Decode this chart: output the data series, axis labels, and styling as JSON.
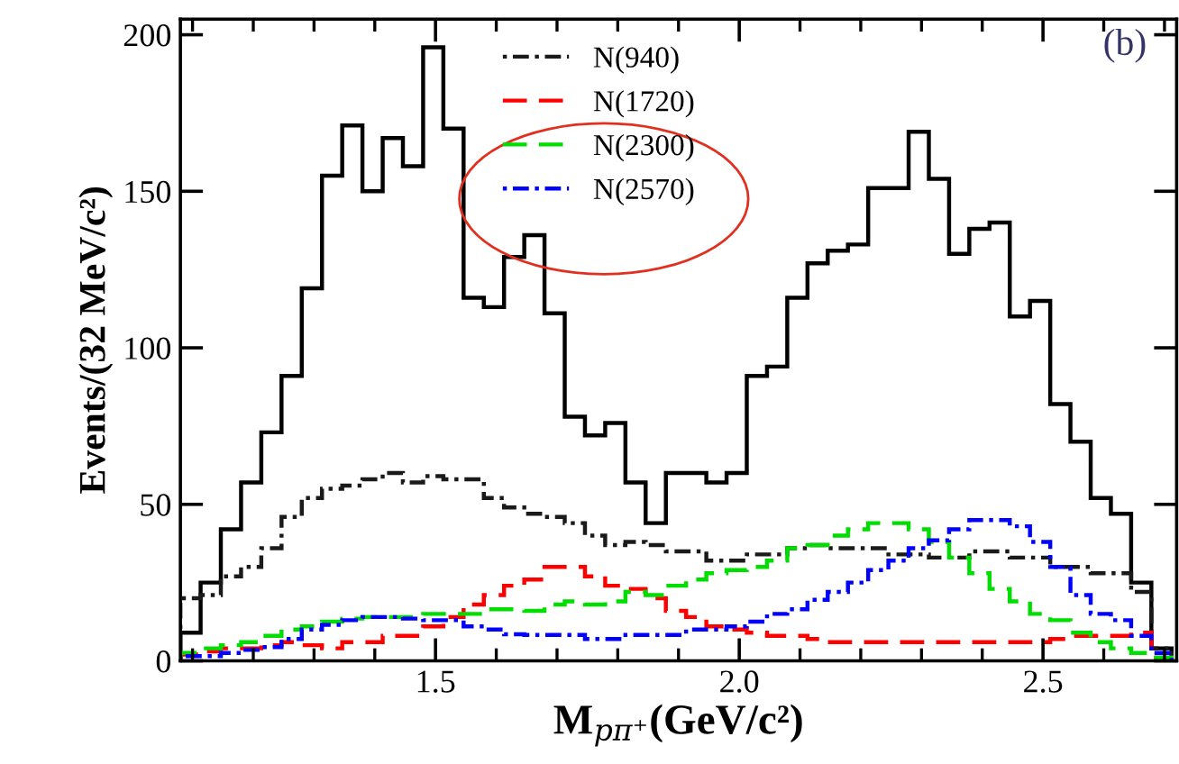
{
  "chart_data": {
    "type": "histogram",
    "xlabel": "M$_{pπ⁺}$(GeV/c²)",
    "ylabel": "Events/(32 MeV/c²)",
    "annotations": [
      "(b)"
    ],
    "bins": [
      1.08,
      1.1133,
      1.1466,
      1.1799,
      1.2132,
      1.2465,
      1.2798,
      1.3131,
      1.3464,
      1.3797,
      1.413,
      1.4463,
      1.4796,
      1.5129,
      1.5462,
      1.5795,
      1.6128,
      1.6461,
      1.6794,
      1.7127,
      1.746,
      1.7793,
      1.8126,
      1.8459,
      1.8792,
      1.9125,
      1.9458,
      1.9791,
      2.0124,
      2.0457,
      2.079,
      2.1123,
      2.1456,
      2.1789,
      2.2122,
      2.2455,
      2.2788,
      2.3121,
      2.3454,
      2.3787,
      2.412,
      2.4453,
      2.4786,
      2.5119,
      2.5452,
      2.5785,
      2.6118,
      2.6451,
      2.6784,
      2.7117
    ],
    "series": [
      {
        "color": "#000000",
        "line_style": "solid",
        "values": [
          9,
          25,
          42,
          57,
          73,
          91,
          119,
          155,
          171,
          150,
          167,
          158,
          196,
          170,
          116,
          113,
          129,
          136,
          111,
          78,
          72,
          76,
          57,
          44,
          60,
          60,
          57,
          60,
          91,
          94,
          116,
          127,
          131,
          133,
          151,
          151,
          169,
          154,
          130,
          138,
          140,
          110,
          115,
          82,
          70,
          52,
          47,
          25,
          4
        ]
      },
      {
        "name": "N(940)",
        "color": "#1a1a1a",
        "line_style": "dotted",
        "values": [
          20,
          21,
          27,
          30,
          36,
          46,
          52,
          55,
          56,
          58,
          60,
          57,
          59,
          58,
          58,
          52,
          49,
          47,
          46,
          44,
          40,
          37,
          38,
          37,
          35,
          35,
          32,
          32,
          34,
          34,
          36,
          37,
          36,
          36,
          36,
          34,
          34,
          33,
          33,
          35,
          35,
          33,
          33,
          30,
          30,
          28,
          28,
          22,
          4
        ]
      },
      {
        "name": "N(1720)",
        "color": "#ff0000",
        "line_style": "dashed",
        "values": [
          2,
          3,
          4,
          4,
          5,
          6,
          5,
          4,
          6,
          6,
          8,
          8,
          11,
          14,
          18,
          21,
          24,
          26,
          30,
          30,
          27,
          24,
          23,
          20,
          16,
          14,
          11,
          10,
          9,
          8,
          8,
          7,
          6,
          6,
          6,
          6,
          6,
          6,
          6,
          6,
          6,
          6,
          6,
          7,
          8,
          8,
          8,
          9,
          1
        ]
      },
      {
        "name": "N(2300)",
        "color": "#00dd00",
        "line_style": "dashed",
        "values": [
          2.5,
          4,
          5,
          6,
          8,
          10,
          11,
          12.5,
          13.5,
          14,
          14,
          14,
          15,
          15,
          15,
          16.5,
          16.5,
          16,
          18,
          19,
          18,
          19,
          22,
          21,
          24,
          26,
          28,
          29,
          30,
          32,
          36,
          37,
          40,
          42,
          44,
          44,
          42,
          38,
          33,
          28,
          23,
          19,
          15,
          13,
          9,
          6,
          4,
          2.5,
          1
        ]
      },
      {
        "name": "N(2570)",
        "color": "#0000ff",
        "line_style": "dotted",
        "values": [
          1.5,
          1.5,
          2.5,
          3.5,
          4.4,
          7,
          10,
          11.5,
          13,
          14,
          14,
          13.5,
          13,
          13,
          11,
          10,
          8.5,
          8.3,
          8.3,
          8.3,
          7,
          7,
          8.3,
          8.3,
          8.3,
          10,
          10,
          11,
          12.5,
          15,
          16.5,
          19.5,
          22,
          25,
          29,
          32,
          36,
          38.5,
          42,
          45,
          45,
          43,
          38,
          30,
          21,
          15,
          13,
          8,
          2.5
        ]
      }
    ],
    "xlim": [
      1.08,
      2.72
    ],
    "ylim": [
      0,
      205
    ],
    "xticks": [
      {
        "value": 1.1,
        "label": null
      },
      {
        "value": 1.2,
        "label": null
      },
      {
        "value": 1.3,
        "label": null
      },
      {
        "value": 1.4,
        "label": null
      },
      {
        "value": 1.5,
        "label": "1.5"
      },
      {
        "value": 1.6,
        "label": null
      },
      {
        "value": 1.7,
        "label": null
      },
      {
        "value": 1.8,
        "label": null
      },
      {
        "value": 1.9,
        "label": null
      },
      {
        "value": 2.0,
        "label": "2.0"
      },
      {
        "value": 2.1,
        "label": null
      },
      {
        "value": 2.2,
        "label": null
      },
      {
        "value": 2.3,
        "label": null
      },
      {
        "value": 2.4,
        "label": null
      },
      {
        "value": 2.5,
        "label": "2.5"
      },
      {
        "value": 2.6,
        "label": null
      },
      {
        "value": 2.7,
        "label": null
      }
    ],
    "yticks": [
      0,
      50,
      100,
      150,
      200
    ],
    "grid": false,
    "legend": "top"
  }
}
